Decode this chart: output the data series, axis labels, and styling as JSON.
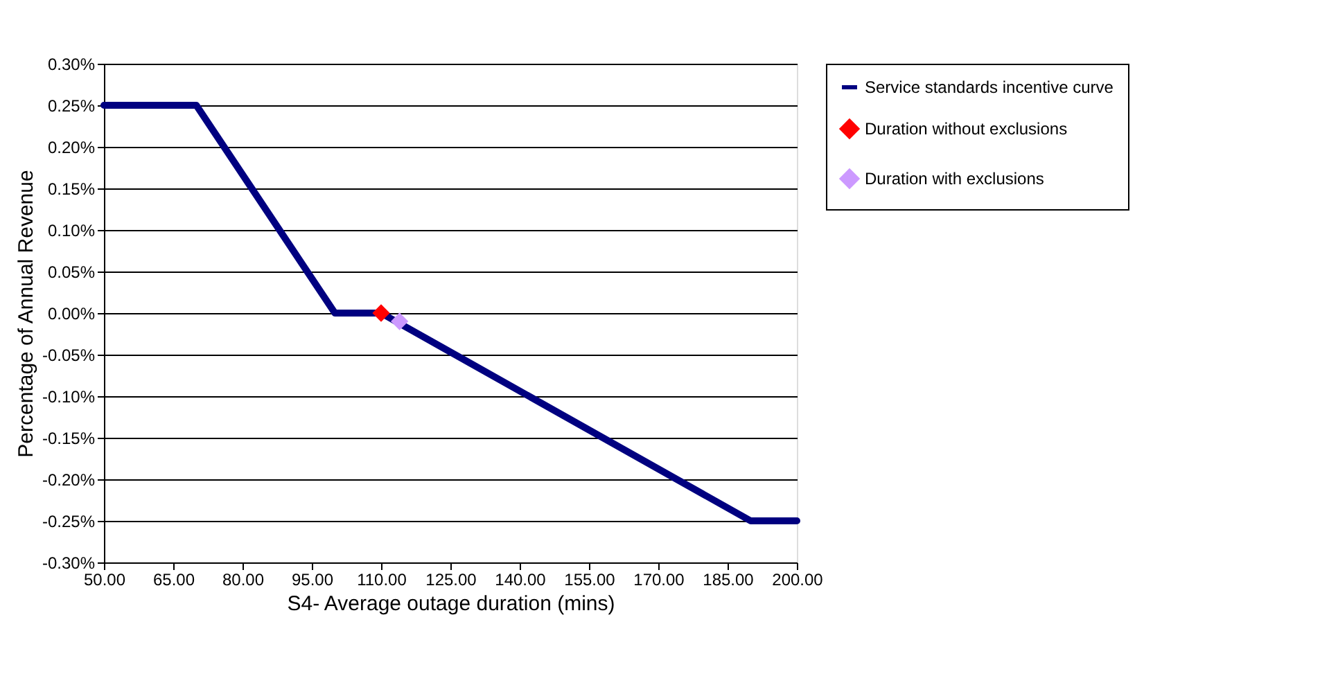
{
  "chart_data": {
    "type": "line",
    "xlabel": "S4- Average outage duration (mins)",
    "ylabel": "Percentage of Annual Revenue",
    "grid": "y",
    "legend": "right",
    "xlim": [
      50,
      200
    ],
    "xticks": [
      {
        "value": 50,
        "label": "50.00"
      },
      {
        "value": 65,
        "label": "65.00"
      },
      {
        "value": 80,
        "label": "80.00"
      },
      {
        "value": 95,
        "label": "95.00"
      },
      {
        "value": 110,
        "label": "110.00"
      },
      {
        "value": 125,
        "label": "125.00"
      },
      {
        "value": 140,
        "label": "140.00"
      },
      {
        "value": 155,
        "label": "155.00"
      },
      {
        "value": 170,
        "label": "170.00"
      },
      {
        "value": 185,
        "label": "185.00"
      },
      {
        "value": 200,
        "label": "200.00"
      }
    ],
    "ylim": [
      -0.3,
      0.3
    ],
    "yticks": [
      {
        "value": 0.3,
        "label": "0.30%"
      },
      {
        "value": 0.25,
        "label": "0.25%"
      },
      {
        "value": 0.2,
        "label": "0.20%"
      },
      {
        "value": 0.15,
        "label": "0.15%"
      },
      {
        "value": 0.1,
        "label": "0.10%"
      },
      {
        "value": 0.05,
        "label": "0.05%"
      },
      {
        "value": 0,
        "label": "0.00%"
      },
      {
        "value": -0.05,
        "label": "-0.05%"
      },
      {
        "value": -0.1,
        "label": "-0.10%"
      },
      {
        "value": -0.15,
        "label": "-0.15%"
      },
      {
        "value": -0.2,
        "label": "-0.20%"
      },
      {
        "value": -0.25,
        "label": "-0.25%"
      },
      {
        "value": -0.3,
        "label": "-0.30%"
      }
    ],
    "series": [
      {
        "name": "Service standards incentive curve",
        "marker": "none",
        "color": "#000080",
        "x": [
          50,
          70,
          100,
          110,
          190,
          200
        ],
        "values": [
          0.25,
          0.25,
          0,
          0,
          -0.25,
          -0.25
        ]
      },
      {
        "name": "Duration without exclusions",
        "type": "scatter",
        "marker": "diamond",
        "color": "#ff0000",
        "x": [
          110
        ],
        "values": [
          0
        ]
      },
      {
        "name": "Duration with exclusions",
        "type": "scatter",
        "marker": "diamond",
        "color": "#cc99ff",
        "x": [
          114
        ],
        "values": [
          -0.01
        ]
      }
    ]
  }
}
